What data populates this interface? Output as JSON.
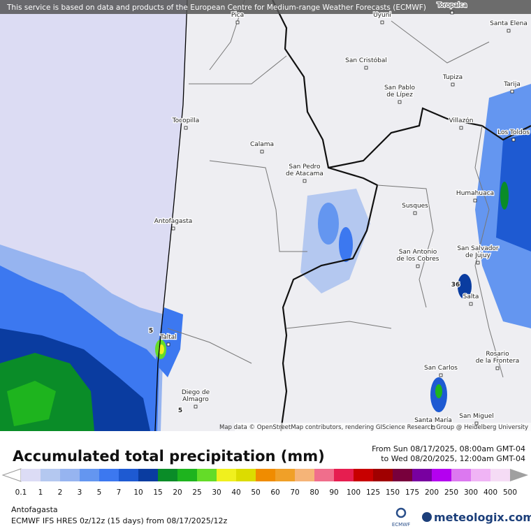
{
  "banner": "This service is based on data and products of the European Centre for Medium-range Weather Forecasts (ECMWF)",
  "map": {
    "places": [
      [
        "Toropalca"
      ],
      [
        "Pica"
      ],
      [
        "Uyuni"
      ],
      [
        "Santa Elena"
      ],
      [
        "San Cristóbal"
      ],
      [
        "Tupiza"
      ],
      [
        "Tarija"
      ],
      [
        "San Pablo",
        "de Lípez"
      ],
      [
        "Tocopilla"
      ],
      [
        "Villazón"
      ],
      [
        "Los Toldos"
      ],
      [
        "Calama"
      ],
      [
        "San Pedro",
        "de Atacama"
      ],
      [
        "Humahuaca"
      ],
      [
        "Susques"
      ],
      [
        "Antofagasta"
      ],
      [
        "San Antonio",
        "de los Cobres"
      ],
      [
        "San Salvador",
        "de Jujuy"
      ],
      [
        "Salta"
      ],
      [
        "Taltal"
      ],
      [
        "Rosario",
        "de la Frontera"
      ],
      [
        "San Carlos"
      ],
      [
        "Diego de",
        "Almagro"
      ],
      [
        "Santa María"
      ],
      [
        "San Miguel"
      ]
    ],
    "annotations": [
      "5",
      "5",
      "36"
    ],
    "attribution": "Map data © OpenStreetMap contributors, rendering GIScience Research Group @ Heidelberg University"
  },
  "legend": {
    "title": "Accumulated total precipitation (mm)",
    "period_from": "From Sun 08/17/2025, 08:00am GMT-04",
    "period_to": "to Wed 08/20/2025, 12:00am GMT-04",
    "ticks": [
      0.1,
      1,
      2,
      3,
      5,
      7,
      10,
      15,
      20,
      25,
      30,
      40,
      50,
      60,
      70,
      80,
      90,
      100,
      125,
      150,
      175,
      200,
      250,
      300,
      400,
      500
    ],
    "under_color": "#ffffff",
    "over_color": "#a0a0a0",
    "colors": [
      "#dcdcf5",
      "#b4c8f0",
      "#96b4f0",
      "#6496f0",
      "#3c78f0",
      "#1e5ad2",
      "#0a3ca0",
      "#0a8c28",
      "#1eb41e",
      "#64dc28",
      "#f0f01e",
      "#dcdc00",
      "#f08c00",
      "#f0a028",
      "#f5b478",
      "#f06e8c",
      "#e61e50",
      "#c80000",
      "#a00000",
      "#78003c",
      "#7800a0",
      "#b400f0",
      "#dc78f0",
      "#f0b4f5",
      "#f5dcf5"
    ]
  },
  "footer": {
    "location": "Antofagasta",
    "model": "ECMWF IFS HRES 0z/12z (15 days) from 08/17/2025/12z",
    "ecmwf_logo": "ECMWF",
    "brand": "meteologix.com"
  }
}
